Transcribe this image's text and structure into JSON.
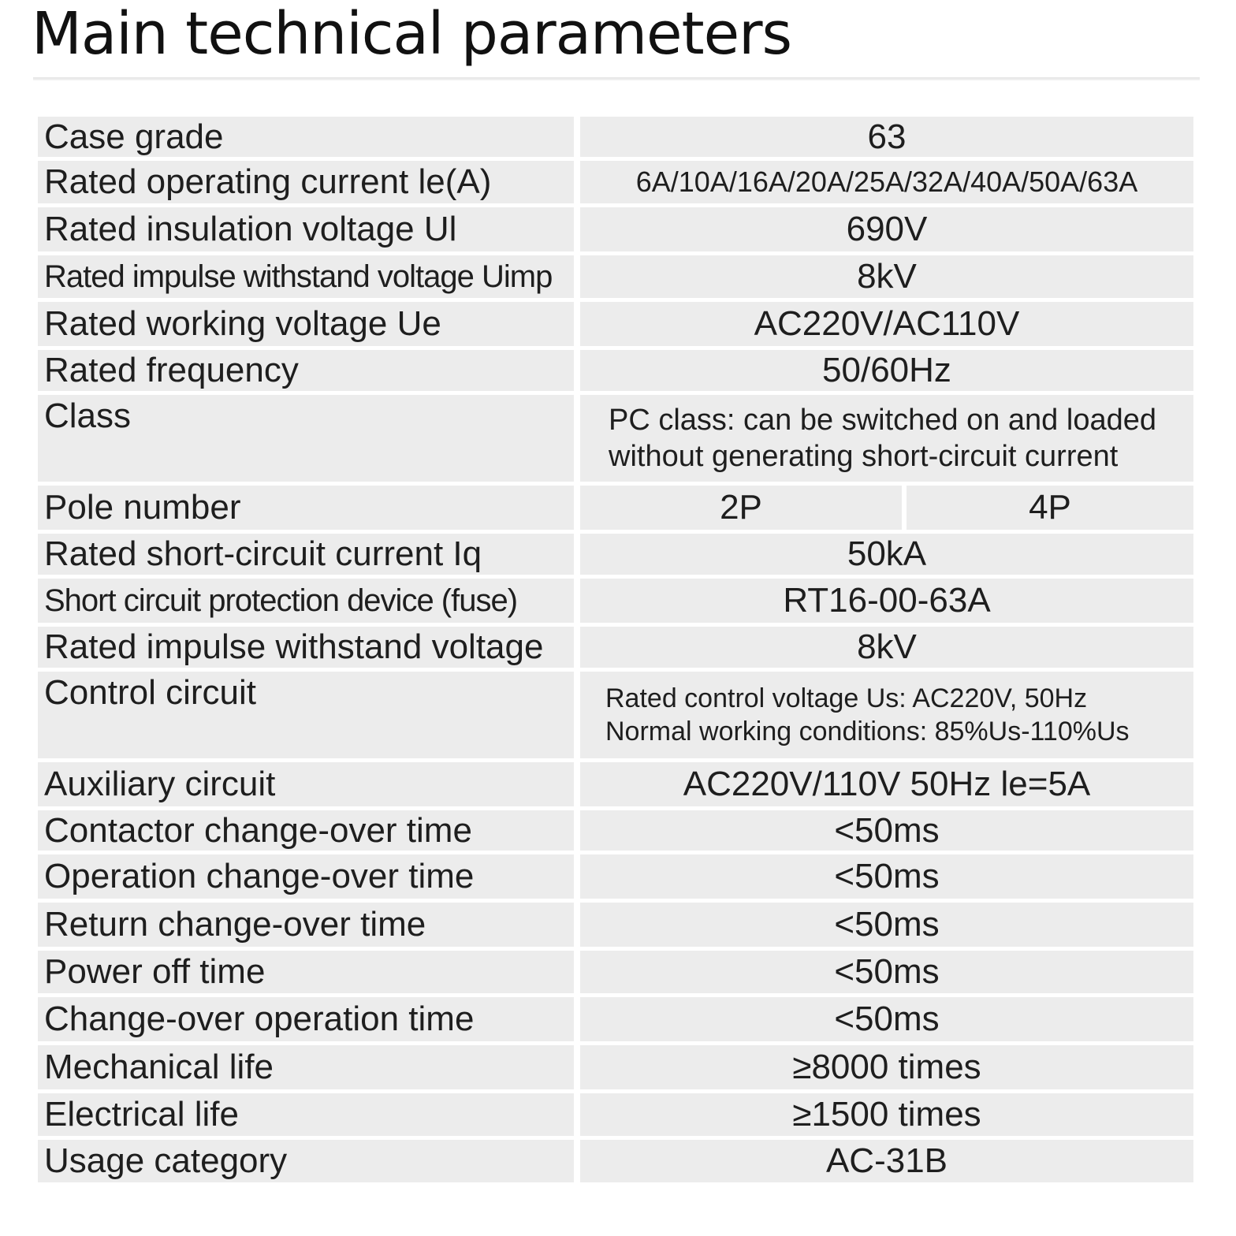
{
  "page": {
    "title": "Main technical parameters"
  },
  "rows": [
    {
      "label": "Case  grade",
      "value": "63"
    },
    {
      "label": "Rated operating current le(A)",
      "value": "6A/10A/16A/20A/25A/32A/40A/50A/63A"
    },
    {
      "label": "Rated insulation voltage Ul",
      "value": "690V"
    },
    {
      "label": "Rated impulse withstand voltage Uimp",
      "value": "8kV"
    },
    {
      "label": "Rated working voltage Ue",
      "value": "AC220V/AC110V"
    },
    {
      "label": "Rated frequency",
      "value": "50/60Hz"
    },
    {
      "label": "Class",
      "lines": [
        "PC class: can be switched on and loaded",
        "without generating short-circuit current"
      ]
    },
    {
      "label": "Pole number",
      "values": [
        "2P",
        "4P"
      ]
    },
    {
      "label": "Rated short-circuit current Iq",
      "value": "50kA"
    },
    {
      "label": "Short circuit protection device (fuse)",
      "value": "RT16-00-63A"
    },
    {
      "label": "Rated impulse withstand voltage",
      "value": "8kV"
    },
    {
      "label": "Control circuit",
      "lines": [
        "Rated control voltage Us: AC220V, 50Hz",
        "Normal working conditions: 85%Us-110%Us"
      ]
    },
    {
      "label": "Auxiliary circuit",
      "value": "AC220V/110V  50Hz le=5A"
    },
    {
      "label": "Contactor change-over time",
      "value": "<50ms"
    },
    {
      "label": "Operation change-over time",
      "value": "<50ms"
    },
    {
      "label": "Return change-over time",
      "value": "<50ms"
    },
    {
      "label": "Power off time",
      "value": "<50ms"
    },
    {
      "label": "Change-over operation time",
      "value": "<50ms"
    },
    {
      "label": "Mechanical life",
      "value": "≥8000  times"
    },
    {
      "label": "Electrical life",
      "value": "≥1500 times"
    },
    {
      "label": "Usage category",
      "value": "AC-31B"
    }
  ]
}
